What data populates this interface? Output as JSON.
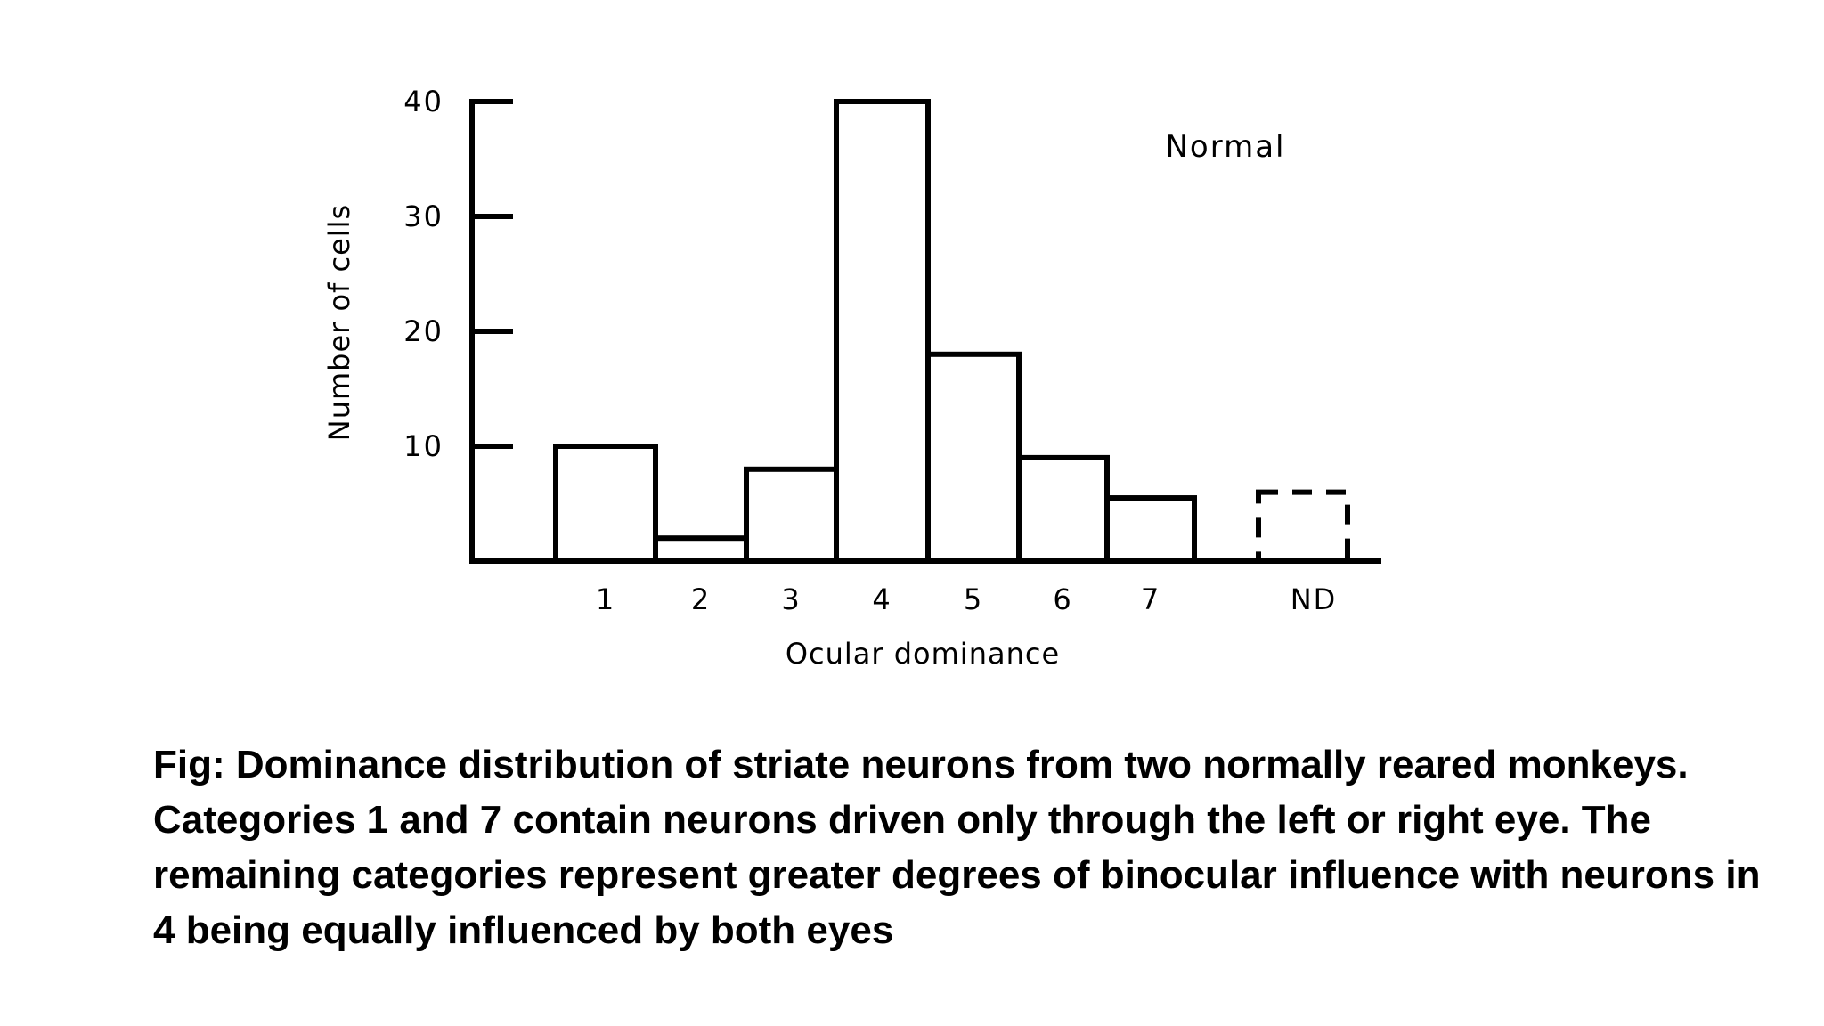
{
  "chart_data": {
    "type": "bar",
    "categories": [
      "1",
      "2",
      "3",
      "4",
      "5",
      "6",
      "7",
      "ND"
    ],
    "values": [
      10,
      2,
      8,
      40,
      18,
      9,
      5.5,
      6
    ],
    "dashed_categories": [
      "ND"
    ],
    "title": "",
    "annotation": "Normal",
    "xlabel": "Ocular dominance",
    "ylabel": "Number of cells",
    "yticks": [
      10,
      20,
      30,
      40
    ],
    "ylim": [
      0,
      40
    ],
    "grid": false,
    "legend": "none",
    "bar_fill": "#ffffff",
    "bar_stroke": "#000000"
  },
  "caption": "Fig: Dominance distribution of striate neurons from two normally reared monkeys. Categories 1 and 7 contain neurons driven only through the left or right eye. The remaining categories represent greater degrees of binocular influence with neurons in 4 being equally influenced by both eyes"
}
